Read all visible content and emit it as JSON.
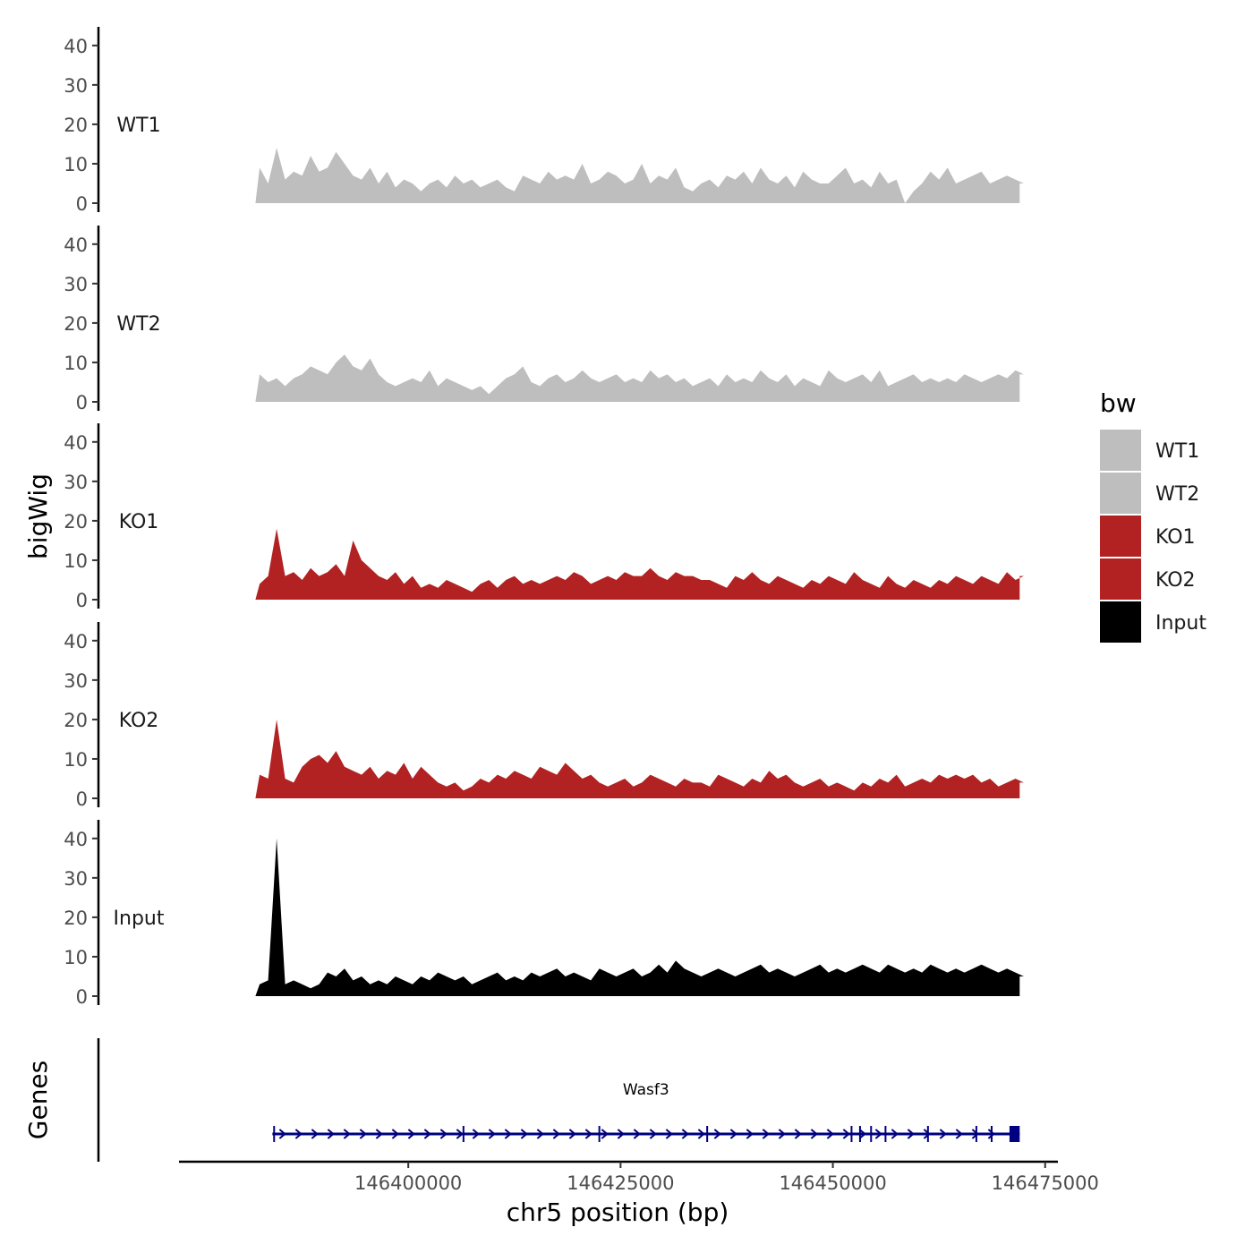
{
  "chart_data": {
    "type": "area",
    "layout": "stacked genome browser tracks",
    "region": {
      "chromosome": "chr5",
      "start": 146382000,
      "end": 146472000
    },
    "xlim": [
      146373000,
      146476500
    ],
    "x_ticks": [
      146400000,
      146425000,
      146450000,
      146475000
    ],
    "x_tick_labels": [
      "146400000",
      "146425000",
      "146450000",
      "146475000"
    ],
    "xlabel": "chr5 position (bp)",
    "ylabel": "bigWig",
    "ylim": [
      0,
      42
    ],
    "y_ticks": [
      0,
      10,
      20,
      30,
      40
    ],
    "y_tick_labels": [
      "0",
      "10",
      "20",
      "30",
      "40"
    ],
    "genes_label": "Genes",
    "legend": {
      "title": "bw",
      "position": "right",
      "entries": [
        {
          "label": "WT1",
          "color": "#bebebe"
        },
        {
          "label": "WT2",
          "color": "#bebebe"
        },
        {
          "label": "KO1",
          "color": "#b22222"
        },
        {
          "label": "KO2",
          "color": "#b22222"
        },
        {
          "label": "Input",
          "color": "#000000"
        }
      ]
    },
    "series": [
      {
        "name": "WT1",
        "color": "#bebebe",
        "bin_size_bp": 1000,
        "values": [
          9,
          5,
          14,
          6,
          8,
          7,
          12,
          8,
          9,
          13,
          10,
          7,
          6,
          9,
          5,
          8,
          4,
          6,
          5,
          3,
          5,
          6,
          4,
          7,
          5,
          6,
          4,
          5,
          6,
          4,
          3,
          7,
          6,
          5,
          8,
          6,
          7,
          6,
          10,
          5,
          6,
          8,
          7,
          5,
          6,
          10,
          5,
          7,
          6,
          9,
          4,
          3,
          5,
          6,
          4,
          7,
          6,
          8,
          5,
          9,
          6,
          5,
          7,
          4,
          8,
          6,
          5,
          5,
          7,
          9,
          5,
          6,
          4,
          8,
          5,
          6,
          0,
          3,
          5,
          8,
          6,
          9,
          5,
          6,
          7,
          8,
          5,
          6,
          7,
          6,
          5
        ]
      },
      {
        "name": "WT2",
        "color": "#bebebe",
        "bin_size_bp": 1000,
        "values": [
          7,
          5,
          6,
          4,
          6,
          7,
          9,
          8,
          7,
          10,
          12,
          9,
          8,
          11,
          7,
          5,
          4,
          5,
          6,
          5,
          8,
          4,
          6,
          5,
          4,
          3,
          4,
          2,
          4,
          6,
          7,
          9,
          5,
          4,
          6,
          7,
          5,
          6,
          8,
          6,
          5,
          6,
          7,
          5,
          6,
          5,
          8,
          6,
          7,
          5,
          6,
          4,
          5,
          6,
          4,
          7,
          5,
          6,
          5,
          8,
          6,
          5,
          7,
          4,
          6,
          5,
          4,
          8,
          6,
          5,
          6,
          7,
          5,
          8,
          4,
          5,
          6,
          7,
          5,
          6,
          5,
          6,
          5,
          7,
          6,
          5,
          6,
          7,
          6,
          8,
          7
        ]
      },
      {
        "name": "KO1",
        "color": "#b22222",
        "bin_size_bp": 1000,
        "values": [
          4,
          6,
          18,
          6,
          7,
          5,
          8,
          6,
          7,
          9,
          6,
          15,
          10,
          8,
          6,
          5,
          7,
          4,
          6,
          3,
          4,
          3,
          5,
          4,
          3,
          2,
          4,
          5,
          3,
          5,
          6,
          4,
          5,
          4,
          5,
          6,
          5,
          7,
          6,
          4,
          5,
          6,
          5,
          7,
          6,
          6,
          8,
          6,
          5,
          7,
          6,
          6,
          5,
          5,
          4,
          3,
          6,
          5,
          7,
          5,
          4,
          6,
          5,
          4,
          3,
          5,
          4,
          6,
          5,
          4,
          7,
          5,
          4,
          3,
          6,
          4,
          3,
          5,
          4,
          3,
          5,
          4,
          6,
          5,
          4,
          6,
          5,
          4,
          7,
          5,
          6
        ]
      },
      {
        "name": "KO2",
        "color": "#b22222",
        "bin_size_bp": 1000,
        "values": [
          6,
          5,
          20,
          5,
          4,
          8,
          10,
          11,
          9,
          12,
          8,
          7,
          6,
          8,
          5,
          7,
          6,
          9,
          5,
          8,
          6,
          4,
          3,
          4,
          2,
          3,
          5,
          4,
          6,
          5,
          7,
          6,
          5,
          8,
          7,
          6,
          9,
          7,
          5,
          6,
          4,
          3,
          4,
          5,
          3,
          4,
          6,
          5,
          4,
          3,
          5,
          4,
          4,
          3,
          6,
          5,
          4,
          3,
          5,
          4,
          7,
          5,
          6,
          4,
          3,
          4,
          5,
          3,
          4,
          3,
          2,
          4,
          3,
          5,
          4,
          6,
          3,
          4,
          5,
          4,
          6,
          5,
          6,
          5,
          6,
          4,
          5,
          3,
          4,
          5,
          4
        ]
      },
      {
        "name": "Input",
        "color": "#000000",
        "bin_size_bp": 1000,
        "values": [
          3,
          4,
          40,
          3,
          4,
          3,
          2,
          3,
          6,
          5,
          7,
          4,
          5,
          3,
          4,
          3,
          5,
          4,
          3,
          5,
          4,
          6,
          5,
          4,
          5,
          3,
          4,
          5,
          6,
          4,
          5,
          4,
          6,
          5,
          6,
          7,
          5,
          6,
          5,
          4,
          7,
          6,
          5,
          6,
          7,
          5,
          6,
          8,
          6,
          9,
          7,
          6,
          5,
          6,
          7,
          6,
          5,
          6,
          7,
          8,
          6,
          7,
          6,
          5,
          6,
          7,
          8,
          6,
          7,
          6,
          7,
          8,
          7,
          6,
          8,
          7,
          6,
          7,
          6,
          8,
          7,
          6,
          7,
          6,
          7,
          8,
          7,
          6,
          7,
          6,
          5
        ]
      }
    ],
    "genes": [
      {
        "name": "Wasf3",
        "start": 146384000,
        "end": 146472000,
        "strand": "+",
        "exons": [
          146384200,
          146406500,
          146422500,
          146435200,
          146452200,
          146453200,
          146454500,
          146456200,
          146461200,
          146466900,
          146468700
        ]
      }
    ]
  }
}
